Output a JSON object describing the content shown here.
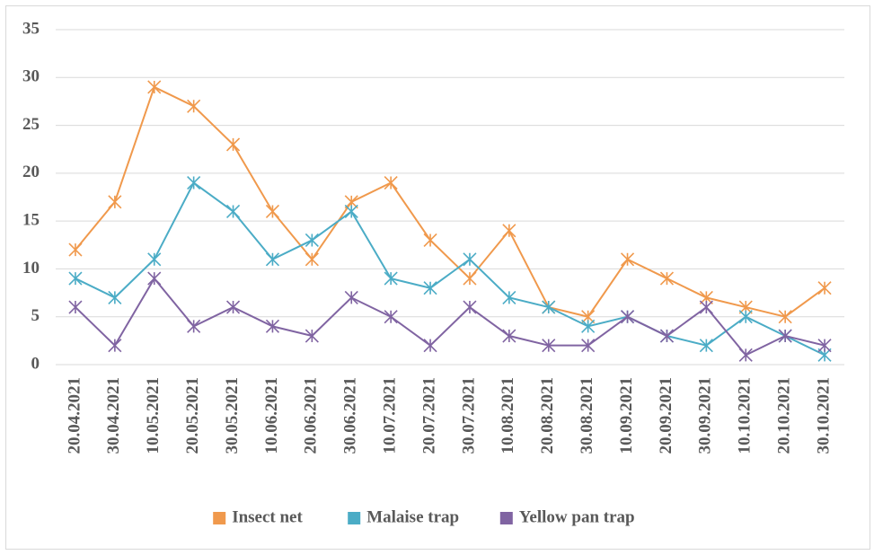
{
  "chart_data": {
    "type": "line",
    "categories": [
      "20.04.2021",
      "30.04.2021",
      "10.05.2021",
      "20.05.2021",
      "30.05.2021",
      "10.06.2021",
      "20.06.2021",
      "30.06.2021",
      "10.07.2021",
      "20.07.2021",
      "30.07.2021",
      "10.08.2021",
      "20.08.2021",
      "30.08.2021",
      "10.09.2021",
      "20.09.2021",
      "30.09.2021",
      "10.10.2021",
      "20.10.2021",
      "30.10.2021"
    ],
    "series": [
      {
        "name": "Insect net",
        "color": "#f0994c",
        "values": [
          12,
          17,
          29,
          27,
          23,
          16,
          11,
          17,
          19,
          13,
          9,
          14,
          6,
          5,
          11,
          9,
          7,
          6,
          5,
          8
        ]
      },
      {
        "name": "Malaise trap",
        "color": "#4bacc6",
        "values": [
          9,
          7,
          11,
          19,
          16,
          11,
          13,
          16,
          9,
          8,
          11,
          7,
          6,
          4,
          5,
          3,
          2,
          5,
          3,
          1
        ]
      },
      {
        "name": "Yellow pan trap",
        "color": "#8064a2",
        "values": [
          6,
          2,
          9,
          4,
          6,
          4,
          3,
          7,
          5,
          2,
          6,
          3,
          2,
          2,
          5,
          3,
          6,
          1,
          3,
          2
        ]
      }
    ],
    "ylim": [
      0,
      35
    ],
    "yticks": [
      0,
      5,
      10,
      15,
      20,
      25,
      30,
      35
    ],
    "grid": true,
    "legend": "bottom"
  }
}
